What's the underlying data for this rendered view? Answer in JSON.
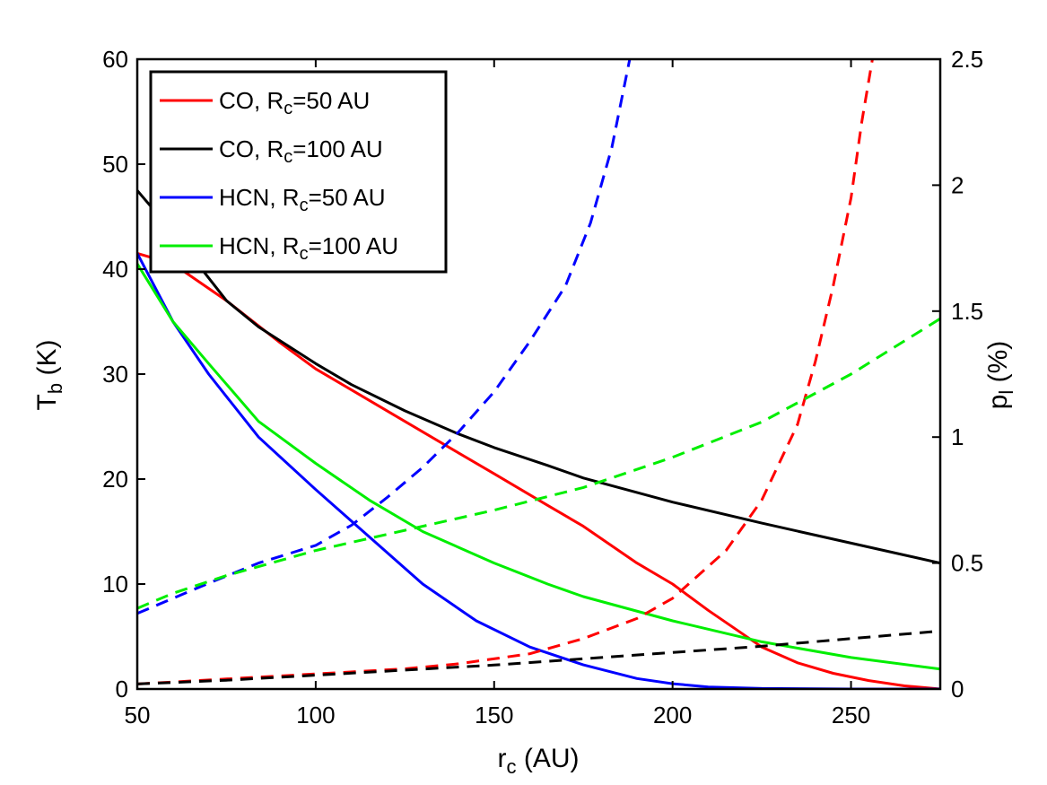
{
  "chart_data": {
    "type": "line",
    "title": "",
    "xlabel": "r",
    "xlabel_sub": "c",
    "xlabel_unit": " (AU)",
    "ylabel": "T",
    "ylabel_sub": "b",
    "ylabel_unit": " (K)",
    "y2label": "p",
    "y2label_sub": "l",
    "y2label_unit": " (%)",
    "xlim": [
      50,
      275
    ],
    "ylim": [
      0,
      60
    ],
    "y2lim": [
      0,
      2.5
    ],
    "xticks": [
      50,
      100,
      150,
      200,
      250
    ],
    "yticks": [
      0,
      10,
      20,
      30,
      40,
      50,
      60
    ],
    "y2ticks": [
      0,
      0.5,
      1,
      1.5,
      2,
      2.5
    ],
    "y2ticklabels": [
      "0",
      "0.5",
      "1",
      "1.5",
      "2",
      "2.5"
    ],
    "grid": false,
    "legend_position": "top-left",
    "legend": [
      {
        "name": "CO, R",
        "sub": "c",
        "suffix": "=50 AU",
        "color": "#ff0000"
      },
      {
        "name": "CO, R",
        "sub": "c",
        "suffix": "=100 AU",
        "color": "#000000"
      },
      {
        "name": "HCN, R",
        "sub": "c",
        "suffix": "=50 AU",
        "color": "#0000ff"
      },
      {
        "name": "HCN, R",
        "sub": "c",
        "suffix": "=100 AU",
        "color": "#00ee00"
      }
    ],
    "series": [
      {
        "color": "#ff0000",
        "axis": "left",
        "style": "solid",
        "x": [
          50,
          60,
          75,
          90,
          100,
          110,
          125,
          140,
          150,
          165,
          175,
          190,
          200,
          210,
          225,
          235,
          245,
          255,
          265,
          275
        ],
        "y": [
          41.5,
          40.5,
          37,
          33,
          30.5,
          28.5,
          25.5,
          22.5,
          20.5,
          17.5,
          15.5,
          12,
          10,
          7.5,
          4,
          2.5,
          1.5,
          0.8,
          0.3,
          0
        ]
      },
      {
        "color": "#000000",
        "axis": "left",
        "style": "solid",
        "x": [
          50,
          60,
          75,
          84,
          100,
          110,
          125,
          140,
          150,
          165,
          175,
          200,
          225,
          250,
          275
        ],
        "y": [
          47.5,
          43.5,
          37,
          34.5,
          31,
          29,
          26.5,
          24.3,
          23,
          21.3,
          20.1,
          17.8,
          15.8,
          13.9,
          12
        ]
      },
      {
        "color": "#0000ff",
        "axis": "left",
        "style": "solid",
        "x": [
          50,
          60,
          70,
          84,
          100,
          115,
          130,
          145,
          160,
          175,
          190,
          200,
          210,
          225,
          250,
          275
        ],
        "y": [
          41.5,
          35,
          30,
          24,
          19,
          14.5,
          10,
          6.5,
          4,
          2.3,
          1,
          0.5,
          0.2,
          0.05,
          0,
          0
        ]
      },
      {
        "color": "#00ee00",
        "axis": "left",
        "style": "solid",
        "x": [
          50,
          60,
          70,
          84,
          100,
          115,
          130,
          150,
          165,
          175,
          200,
          225,
          250,
          275
        ],
        "y": [
          40.5,
          35,
          31,
          25.5,
          21.5,
          18,
          15,
          12,
          10,
          8.8,
          6.5,
          4.5,
          3,
          1.9
        ]
      },
      {
        "color": "#ff0000",
        "axis": "right",
        "style": "dashed",
        "x": [
          50,
          75,
          100,
          125,
          140,
          160,
          175,
          190,
          200,
          215,
          225,
          235,
          240,
          245,
          250,
          253,
          256
        ],
        "y": [
          0.02,
          0.04,
          0.06,
          0.08,
          0.1,
          0.14,
          0.2,
          0.28,
          0.36,
          0.55,
          0.75,
          1.05,
          1.3,
          1.6,
          1.95,
          2.25,
          2.5
        ]
      },
      {
        "color": "#000000",
        "axis": "right",
        "style": "dashed",
        "x": [
          50,
          75,
          100,
          125,
          150,
          175,
          200,
          225,
          250,
          275
        ],
        "y": [
          0.02,
          0.035,
          0.055,
          0.075,
          0.095,
          0.12,
          0.145,
          0.17,
          0.2,
          0.23
        ]
      },
      {
        "color": "#0000ff",
        "axis": "right",
        "style": "dashed",
        "x": [
          50,
          60,
          70,
          84,
          100,
          110,
          120,
          130,
          140,
          150,
          160,
          170,
          177,
          183,
          188
        ],
        "y": [
          0.3,
          0.36,
          0.42,
          0.5,
          0.57,
          0.65,
          0.76,
          0.88,
          1.02,
          1.18,
          1.38,
          1.6,
          1.85,
          2.15,
          2.5
        ]
      },
      {
        "color": "#00ee00",
        "axis": "right",
        "style": "dashed",
        "x": [
          50,
          60,
          75,
          100,
          125,
          150,
          175,
          200,
          225,
          250,
          275
        ],
        "y": [
          0.32,
          0.38,
          0.45,
          0.55,
          0.63,
          0.71,
          0.8,
          0.92,
          1.06,
          1.25,
          1.47
        ]
      }
    ]
  }
}
